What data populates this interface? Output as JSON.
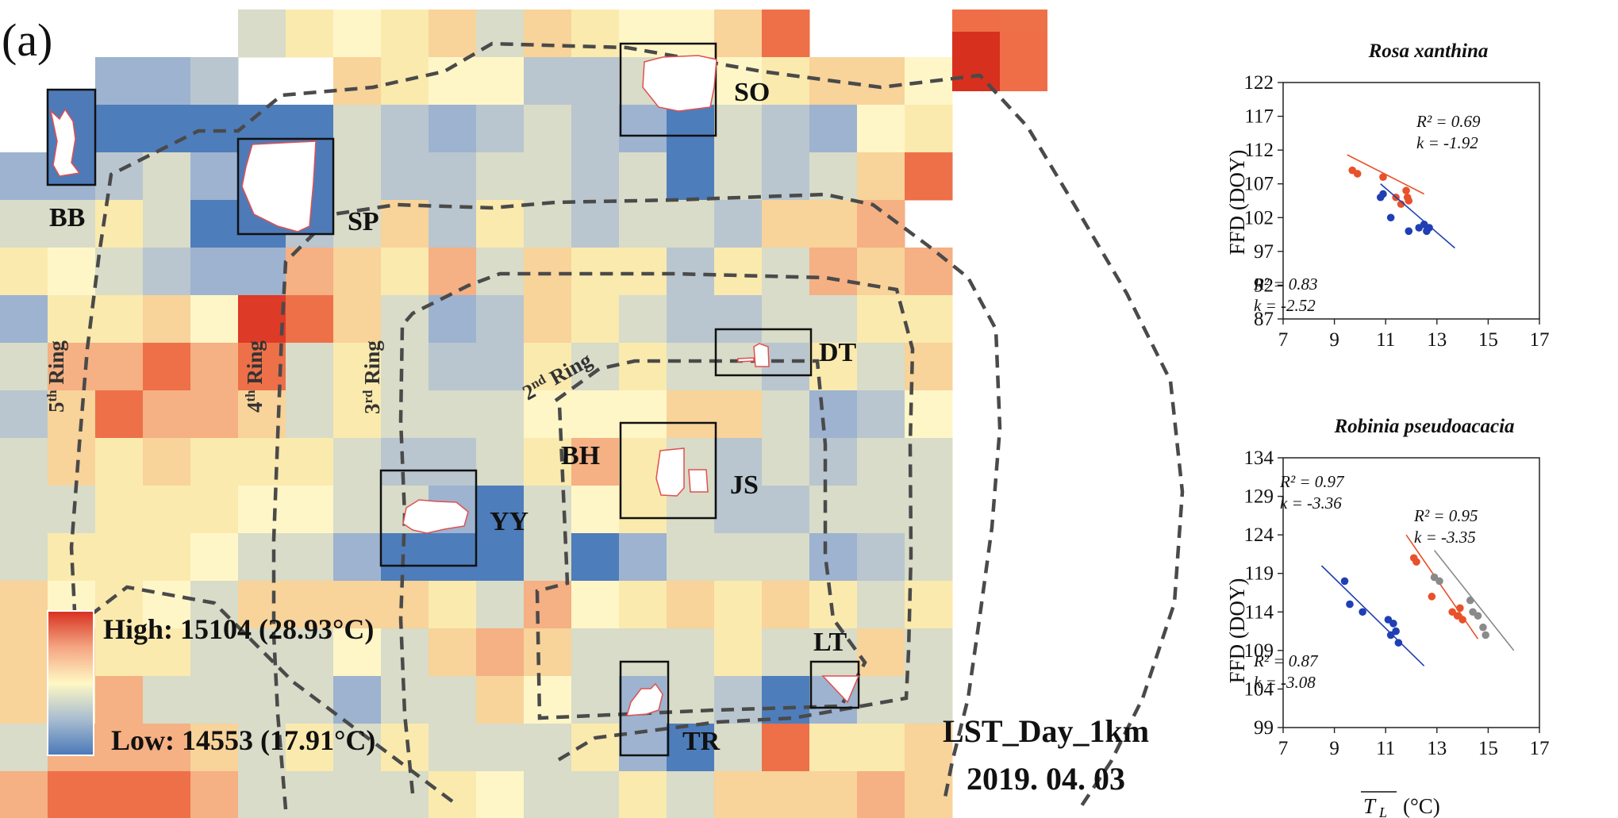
{
  "panel_label": "(a)",
  "map": {
    "sites": [
      {
        "code": "BB"
      },
      {
        "code": "SP"
      },
      {
        "code": "SO"
      },
      {
        "code": "DT"
      },
      {
        "code": "BH"
      },
      {
        "code": "JS"
      },
      {
        "code": "YY"
      },
      {
        "code": "LT"
      },
      {
        "code": "TR"
      }
    ],
    "rings": [
      {
        "base": "5",
        "sup": "th",
        "word": " Ring"
      },
      {
        "base": "4",
        "sup": "th",
        "word": " Ring"
      },
      {
        "base": "3",
        "sup": "rd",
        "word": " Ring"
      },
      {
        "base": "2",
        "sup": "nd",
        "word": " Ring"
      }
    ],
    "legend": {
      "high": "High: 15104 (28.93°C)",
      "low": "Low: 14553 (17.91°C)",
      "colors": [
        "#d7301f",
        "#f4a582",
        "#fff8c4",
        "#a8bdd0",
        "#4a78b8"
      ]
    },
    "product": "LST_Day_1km",
    "date": "2019. 04. 03"
  },
  "chart_data": [
    {
      "type": "scatter",
      "title": "Rosa xanthina",
      "ylabel": "FFD (DOY)",
      "xlabel": "",
      "xlim": [
        7,
        17
      ],
      "ylim": [
        87,
        122
      ],
      "x_ticks": [
        7,
        9,
        11,
        13,
        15,
        17
      ],
      "y_ticks": [
        87,
        92,
        97,
        102,
        107,
        112,
        117,
        122
      ],
      "series": [
        {
          "color": "#e8512a",
          "points": [
            [
              9.7,
              109
            ],
            [
              9.9,
              108.5
            ],
            [
              10.9,
              108
            ],
            [
              11.4,
              105
            ],
            [
              11.6,
              104
            ],
            [
              11.8,
              106
            ],
            [
              11.85,
              105
            ],
            [
              11.9,
              104.5
            ]
          ],
          "fit": [
            [
              9.5,
              111.3
            ],
            [
              12.5,
              105.5
            ]
          ],
          "r2": "R² = 0.69",
          "k": "k = -1.92"
        },
        {
          "color": "#1f3fb4",
          "points": [
            [
              10.8,
              105
            ],
            [
              10.9,
              105.5
            ],
            [
              11.2,
              102
            ],
            [
              11.9,
              100
            ],
            [
              12.3,
              100.5
            ],
            [
              12.5,
              101
            ],
            [
              12.6,
              100
            ],
            [
              12.7,
              100.5
            ]
          ],
          "fit": [
            [
              10.8,
              107
            ],
            [
              13.7,
              97.5
            ]
          ],
          "r2": "R² = 0.83",
          "k": "k = -2.52"
        }
      ]
    },
    {
      "type": "scatter",
      "title": "Robinia pseudoacacia",
      "ylabel": "FFD (DOY)",
      "xlabel": "T_L (°C)",
      "xlim": [
        7,
        17
      ],
      "ylim": [
        99,
        134
      ],
      "x_ticks": [
        7,
        9,
        11,
        13,
        15,
        17
      ],
      "y_ticks": [
        99,
        104,
        109,
        114,
        119,
        124,
        129,
        134
      ],
      "series": [
        {
          "color": "#1f3fb4",
          "points": [
            [
              9.4,
              118
            ],
            [
              9.6,
              115
            ],
            [
              10.1,
              114
            ],
            [
              11.1,
              113
            ],
            [
              11.2,
              111
            ],
            [
              11.3,
              112.5
            ],
            [
              11.4,
              111.5
            ],
            [
              11.5,
              110
            ]
          ],
          "fit": [
            [
              8.5,
              120
            ],
            [
              12.5,
              107
            ]
          ],
          "r2": "R² = 0.87",
          "k": "k = -3.08"
        },
        {
          "color": "#e8512a",
          "points": [
            [
              12.1,
              121
            ],
            [
              12.2,
              120.5
            ],
            [
              12.8,
              116
            ],
            [
              13.6,
              114
            ],
            [
              13.8,
              113.5
            ],
            [
              13.9,
              114.5
            ],
            [
              14.0,
              113
            ]
          ],
          "fit": [
            [
              11.8,
              124
            ],
            [
              14.6,
              110.5
            ]
          ],
          "r2": "R² = 0.97",
          "k": "k = -3.36"
        },
        {
          "color": "#8a8a8a",
          "points": [
            [
              12.9,
              118.5
            ],
            [
              13.1,
              118
            ],
            [
              14.3,
              115.5
            ],
            [
              14.4,
              114
            ],
            [
              14.6,
              113.5
            ],
            [
              14.8,
              112
            ],
            [
              14.9,
              111
            ]
          ],
          "fit": [
            [
              12.9,
              122
            ],
            [
              16.0,
              109
            ]
          ],
          "r2": "R² = 0.95",
          "k": "k = -3.35"
        }
      ]
    }
  ]
}
